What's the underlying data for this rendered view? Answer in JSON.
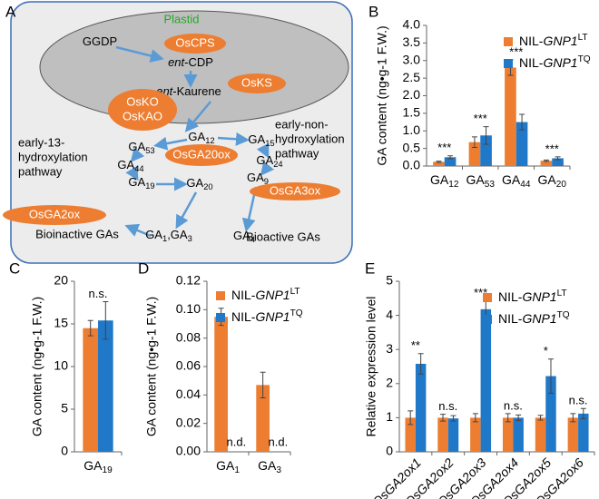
{
  "diagram": {
    "panel": "A",
    "compartment": "Plastid",
    "nodes": [
      [
        {
          "t": "GGDP"
        }
      ],
      [
        {
          "t": "ent",
          "s": "i"
        },
        {
          "t": "-CDP"
        }
      ],
      [
        {
          "t": "ent",
          "s": "i"
        },
        {
          "t": "-Kaurene"
        }
      ],
      [
        {
          "t": "GA"
        },
        {
          "t": "12",
          "s": "sub"
        }
      ],
      [
        {
          "t": "GA"
        },
        {
          "t": "53",
          "s": "sub"
        }
      ],
      [
        {
          "t": "GA"
        },
        {
          "t": "15",
          "s": "sub"
        }
      ],
      [
        {
          "t": "GA"
        },
        {
          "t": "44",
          "s": "sub"
        }
      ],
      [
        {
          "t": "GA"
        },
        {
          "t": "24",
          "s": "sub"
        }
      ],
      [
        {
          "t": "GA"
        },
        {
          "t": "19",
          "s": "sub"
        }
      ],
      [
        {
          "t": "GA"
        },
        {
          "t": "20",
          "s": "sub"
        }
      ],
      [
        {
          "t": "GA"
        },
        {
          "t": "9",
          "s": "sub"
        }
      ],
      [
        {
          "t": "GA"
        },
        {
          "t": "1",
          "s": "sub"
        },
        {
          "t": ",GA"
        },
        {
          "t": "3",
          "s": "sub"
        }
      ],
      [
        {
          "t": "GA"
        },
        {
          "t": "4",
          "s": "sub"
        }
      ]
    ],
    "enzymes": [
      [
        "OsCPS"
      ],
      [
        "OsKS"
      ],
      [
        "OsKO",
        "OsKAO"
      ],
      [
        "OsGA20ox"
      ],
      [
        "OsGA3ox"
      ],
      [
        "OsGA2ox"
      ]
    ],
    "notes": [
      [
        "Bioinactive GAs"
      ],
      [
        "Bioactive GAs"
      ],
      [
        "early-13-",
        "hydroxylation",
        "pathway"
      ],
      [
        "early-non-",
        "hydroxylation",
        "pathway"
      ]
    ]
  },
  "chart_data": [
    {
      "type": "bar",
      "panel": "B",
      "y_label": "GA content (ng•g-1 F.W.)",
      "categories": [
        [
          {
            "t": "GA"
          },
          {
            "t": "12",
            "s": "sub"
          }
        ],
        [
          {
            "t": "GA"
          },
          {
            "t": "53",
            "s": "sub"
          }
        ],
        [
          {
            "t": "GA"
          },
          {
            "t": "44",
            "s": "sub"
          }
        ],
        [
          {
            "t": "GA"
          },
          {
            "t": "20",
            "s": "sub"
          }
        ]
      ],
      "series": [
        {
          "name": [
            {
              "t": "NIL-"
            },
            {
              "t": "GNP1",
              "s": "i"
            },
            {
              "t": "LT",
              "s": "sup"
            }
          ],
          "color": "#ed7d31",
          "values": [
            0.12,
            0.68,
            2.8,
            0.15
          ],
          "errors": [
            0.02,
            0.15,
            0.22,
            0.02
          ]
        },
        {
          "name": [
            {
              "t": "NIL-"
            },
            {
              "t": "GNP1",
              "s": "i"
            },
            {
              "t": "TQ",
              "s": "sup"
            }
          ],
          "color": "#1f78c8",
          "values": [
            0.25,
            0.87,
            1.25,
            0.22
          ],
          "errors": [
            0.04,
            0.25,
            0.22,
            0.04
          ]
        }
      ],
      "annotations": [
        "***",
        "***",
        "***",
        "***"
      ],
      "ylim": [
        0,
        4
      ],
      "yticks": [
        {
          "value": 0,
          "label": "0.0"
        },
        0.5,
        {
          "value": 1,
          "label": "1.0"
        },
        1.5,
        {
          "value": 2,
          "label": "2.0"
        },
        2.5,
        {
          "value": 3,
          "label": "3.0"
        },
        3.5,
        {
          "value": 4,
          "label": "4.0"
        }
      ]
    },
    {
      "type": "bar",
      "panel": "C",
      "y_label": "GA content (ng•g-1 F.W.)",
      "categories": [
        [
          {
            "t": "GA"
          },
          {
            "t": "19",
            "s": "sub"
          }
        ]
      ],
      "series": [
        {
          "color": "#ed7d31",
          "values": [
            14.5
          ],
          "errors": [
            0.9
          ]
        },
        {
          "color": "#1f78c8",
          "values": [
            15.4
          ],
          "errors": [
            2.2
          ]
        }
      ],
      "annotations": [
        "n.s."
      ],
      "ylim": [
        0,
        20
      ],
      "yticks": [
        0,
        5,
        10,
        15,
        20
      ]
    },
    {
      "type": "bar",
      "panel": "D",
      "y_label": "GA content (ng•g-1 F.W.)",
      "categories": [
        [
          {
            "t": "GA"
          },
          {
            "t": "1",
            "s": "sub"
          }
        ],
        [
          {
            "t": "GA"
          },
          {
            "t": "3",
            "s": "sub"
          }
        ]
      ],
      "series": [
        {
          "name": [
            {
              "t": "NIL-"
            },
            {
              "t": "GNP1",
              "s": "i"
            },
            {
              "t": "LT",
              "s": "sup"
            }
          ],
          "color": "#ed7d31",
          "values": [
            0.095,
            0.047
          ],
          "errors": [
            0.006,
            0.009
          ]
        },
        {
          "name": [
            {
              "t": "NIL-"
            },
            {
              "t": "GNP1",
              "s": "i"
            },
            {
              "t": "TQ",
              "s": "sup"
            }
          ],
          "color": "#1f78c8",
          "values": [
            null,
            null
          ],
          "errors": [
            null,
            null
          ]
        }
      ],
      "annotations": [
        "n.d.",
        "n.d."
      ],
      "ylim": [
        0,
        0.12
      ],
      "yticks": [
        {
          "value": 0,
          "label": "0.00"
        },
        0.02,
        0.04,
        0.06,
        0.08,
        {
          "value": 0.1,
          "label": "0.10"
        },
        0.12
      ]
    },
    {
      "type": "bar",
      "panel": "E",
      "y_label": "Relative expression level",
      "categories": [
        [
          {
            "t": "OsGA2ox1",
            "s": "i"
          }
        ],
        [
          {
            "t": "OsGA2ox2",
            "s": "i"
          }
        ],
        [
          {
            "t": "OsGA2ox3",
            "s": "i"
          }
        ],
        [
          {
            "t": "OsGA2ox4",
            "s": "i"
          }
        ],
        [
          {
            "t": "OsGA2ox5",
            "s": "i"
          }
        ],
        [
          {
            "t": "OsGA2ox6",
            "s": "i"
          }
        ]
      ],
      "series": [
        {
          "name": [
            {
              "t": "NIL-"
            },
            {
              "t": "GNP1",
              "s": "i"
            },
            {
              "t": "LT",
              "s": "sup"
            }
          ],
          "color": "#ed7d31",
          "values": [
            1.0,
            1.0,
            1.0,
            1.0,
            1.0,
            1.0
          ],
          "errors": [
            0.2,
            0.1,
            0.12,
            0.12,
            0.07,
            0.12
          ]
        },
        {
          "name": [
            {
              "t": "NIL-"
            },
            {
              "t": "GNP1",
              "s": "i"
            },
            {
              "t": "TQ",
              "s": "sup"
            }
          ],
          "color": "#1f78c8",
          "values": [
            2.58,
            0.98,
            4.18,
            1.0,
            2.22,
            1.12
          ],
          "errors": [
            0.3,
            0.08,
            0.25,
            0.08,
            0.5,
            0.15
          ]
        }
      ],
      "annotations": [
        "**",
        "n.s.",
        "***",
        "n.s.",
        "*",
        "n.s."
      ],
      "ylim": [
        0,
        5
      ],
      "yticks": [
        0,
        1,
        2,
        3,
        4,
        5
      ]
    }
  ]
}
